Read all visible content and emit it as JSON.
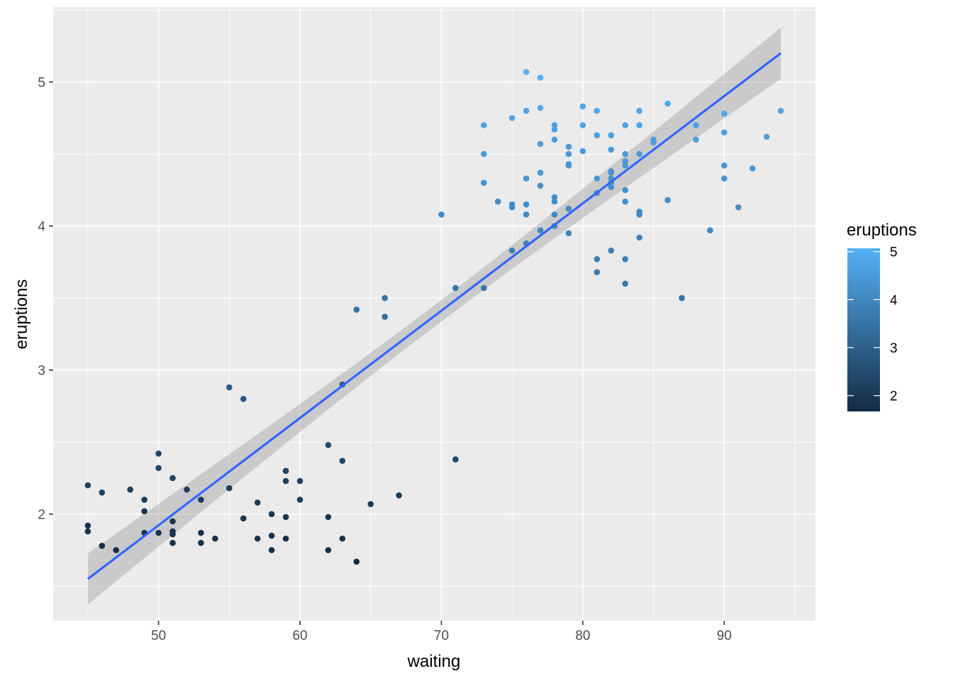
{
  "chart_data": {
    "type": "scatter",
    "title": "",
    "xlabel": "waiting",
    "ylabel": "eruptions",
    "xlim": [
      42.55,
      96.45
    ],
    "ylim": [
      1.26,
      5.52
    ],
    "x_ticks": [
      50,
      60,
      70,
      80,
      90
    ],
    "y_ticks": [
      2,
      3,
      4,
      5
    ],
    "grid": true,
    "legend": {
      "title": "eruptions",
      "placement": "right",
      "type": "colorbar",
      "range": [
        1.67,
        5.07
      ],
      "ticks": [
        2,
        3,
        4,
        5
      ],
      "low_color": "#132B43",
      "high_color": "#56B1F7"
    },
    "colors": {
      "panel_background": "#EBEBEB",
      "grid": "#FFFFFF",
      "fit_line": "#3366FF",
      "ribbon": "#999999"
    },
    "smooth": {
      "method": "lm",
      "x_range": [
        45,
        94
      ],
      "fit": [
        1.55,
        5.2
      ],
      "ci_lower": [
        1.37,
        5.03
      ],
      "ci_upper": [
        1.73,
        5.38
      ]
    },
    "points": [
      [
        45,
        2.2
      ],
      [
        45,
        1.92
      ],
      [
        45,
        1.88
      ],
      [
        46,
        2.15
      ],
      [
        46,
        1.78
      ],
      [
        47,
        1.75
      ],
      [
        48,
        2.17
      ],
      [
        49,
        2.1
      ],
      [
        49,
        2.02
      ],
      [
        49,
        1.87
      ],
      [
        50,
        2.42
      ],
      [
        50,
        2.32
      ],
      [
        50,
        1.87
      ],
      [
        51,
        2.25
      ],
      [
        51,
        1.95
      ],
      [
        51,
        1.88
      ],
      [
        51,
        1.86
      ],
      [
        51,
        1.8
      ],
      [
        52,
        2.17
      ],
      [
        53,
        2.1
      ],
      [
        53,
        1.87
      ],
      [
        53,
        1.8
      ],
      [
        54,
        1.83
      ],
      [
        55,
        2.88
      ],
      [
        55,
        2.18
      ],
      [
        56,
        2.8
      ],
      [
        56,
        1.97
      ],
      [
        57,
        2.08
      ],
      [
        57,
        1.83
      ],
      [
        58,
        2.0
      ],
      [
        58,
        1.85
      ],
      [
        58,
        1.75
      ],
      [
        59,
        2.3
      ],
      [
        59,
        2.23
      ],
      [
        59,
        1.98
      ],
      [
        59,
        1.83
      ],
      [
        60,
        2.23
      ],
      [
        60,
        2.1
      ],
      [
        62,
        2.48
      ],
      [
        62,
        1.98
      ],
      [
        62,
        1.75
      ],
      [
        63,
        2.9
      ],
      [
        63,
        2.37
      ],
      [
        63,
        1.83
      ],
      [
        64,
        3.42
      ],
      [
        64,
        1.67
      ],
      [
        65,
        2.07
      ],
      [
        66,
        3.5
      ],
      [
        66,
        3.37
      ],
      [
        67,
        2.13
      ],
      [
        70,
        4.08
      ],
      [
        71,
        3.57
      ],
      [
        71,
        2.38
      ],
      [
        73,
        4.7
      ],
      [
        73,
        4.5
      ],
      [
        73,
        4.3
      ],
      [
        73,
        3.57
      ],
      [
        74,
        4.17
      ],
      [
        75,
        4.75
      ],
      [
        75,
        4.15
      ],
      [
        75,
        4.13
      ],
      [
        75,
        3.83
      ],
      [
        76,
        5.07
      ],
      [
        76,
        4.8
      ],
      [
        76,
        4.33
      ],
      [
        76,
        4.15
      ],
      [
        76,
        4.08
      ],
      [
        76,
        3.88
      ],
      [
        77,
        5.03
      ],
      [
        77,
        4.82
      ],
      [
        77,
        4.57
      ],
      [
        77,
        4.37
      ],
      [
        77,
        4.28
      ],
      [
        77,
        3.97
      ],
      [
        78,
        4.7
      ],
      [
        78,
        4.67
      ],
      [
        78,
        4.6
      ],
      [
        78,
        4.2
      ],
      [
        78,
        4.17
      ],
      [
        78,
        4.08
      ],
      [
        78,
        4.0
      ],
      [
        79,
        4.55
      ],
      [
        79,
        4.5
      ],
      [
        79,
        4.43
      ],
      [
        79,
        4.42
      ],
      [
        79,
        4.12
      ],
      [
        79,
        3.95
      ],
      [
        80,
        4.83
      ],
      [
        80,
        4.7
      ],
      [
        80,
        4.52
      ],
      [
        81,
        4.8
      ],
      [
        81,
        4.63
      ],
      [
        81,
        4.33
      ],
      [
        81,
        4.23
      ],
      [
        81,
        3.77
      ],
      [
        81,
        3.68
      ],
      [
        82,
        4.63
      ],
      [
        82,
        4.53
      ],
      [
        82,
        4.38
      ],
      [
        82,
        4.37
      ],
      [
        82,
        4.33
      ],
      [
        82,
        4.3
      ],
      [
        82,
        4.27
      ],
      [
        82,
        3.83
      ],
      [
        83,
        4.7
      ],
      [
        83,
        4.5
      ],
      [
        83,
        4.45
      ],
      [
        83,
        4.42
      ],
      [
        83,
        4.25
      ],
      [
        83,
        4.17
      ],
      [
        83,
        3.77
      ],
      [
        83,
        3.6
      ],
      [
        84,
        4.8
      ],
      [
        84,
        4.7
      ],
      [
        84,
        4.5
      ],
      [
        84,
        4.1
      ],
      [
        84,
        4.08
      ],
      [
        84,
        3.92
      ],
      [
        85,
        4.6
      ],
      [
        85,
        4.58
      ],
      [
        86,
        4.85
      ],
      [
        86,
        4.18
      ],
      [
        87,
        3.5
      ],
      [
        88,
        4.7
      ],
      [
        88,
        4.6
      ],
      [
        89,
        3.97
      ],
      [
        90,
        4.78
      ],
      [
        90,
        4.65
      ],
      [
        90,
        4.42
      ],
      [
        90,
        4.33
      ],
      [
        91,
        4.13
      ],
      [
        92,
        4.4
      ],
      [
        93,
        4.62
      ],
      [
        94,
        4.8
      ]
    ]
  }
}
